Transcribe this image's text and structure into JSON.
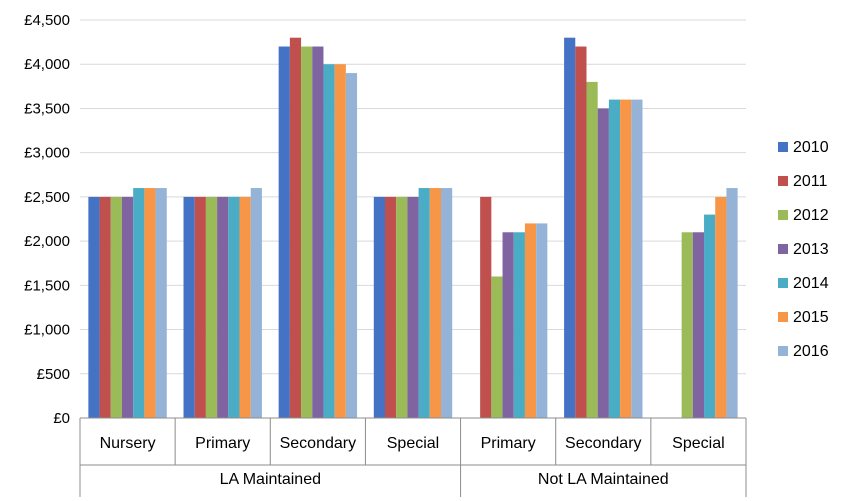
{
  "chart_data": {
    "type": "bar",
    "title": "",
    "xlabel": "",
    "ylabel": "",
    "ylim": [
      0,
      4500
    ],
    "yticks": [
      0,
      500,
      1000,
      1500,
      2000,
      2500,
      3000,
      3500,
      4000,
      4500
    ],
    "ytick_labels": [
      "£0",
      "£500",
      "£1,000",
      "£1,500",
      "£2,000",
      "£2,500",
      "£3,000",
      "£3,500",
      "£4,000",
      "£4,500"
    ],
    "grid": true,
    "legend_position": "right",
    "groups": [
      {
        "label": "LA Maintained",
        "categories": [
          "Nursery",
          "Primary",
          "Secondary",
          "Special"
        ]
      },
      {
        "label": "Not LA Maintained",
        "categories": [
          "Primary",
          "Secondary",
          "Special"
        ]
      }
    ],
    "series": [
      {
        "name": "2010",
        "color": "#4472C4",
        "values": [
          2500,
          2500,
          4200,
          2500,
          null,
          4300,
          null
        ]
      },
      {
        "name": "2011",
        "color": "#C0504D",
        "values": [
          2500,
          2500,
          4300,
          2500,
          2500,
          4200,
          null
        ]
      },
      {
        "name": "2012",
        "color": "#9BBB59",
        "values": [
          2500,
          2500,
          4200,
          2500,
          1600,
          3800,
          2100
        ]
      },
      {
        "name": "2013",
        "color": "#8064A2",
        "values": [
          2500,
          2500,
          4200,
          2500,
          2100,
          3500,
          2100
        ]
      },
      {
        "name": "2014",
        "color": "#4BACC6",
        "values": [
          2600,
          2500,
          4000,
          2600,
          2100,
          3600,
          2300
        ]
      },
      {
        "name": "2015",
        "color": "#F79646",
        "values": [
          2600,
          2500,
          4000,
          2600,
          2200,
          3600,
          2500
        ]
      },
      {
        "name": "2016",
        "color": "#95B3D7",
        "values": [
          2600,
          2600,
          3900,
          2600,
          2200,
          3600,
          2600
        ]
      }
    ]
  }
}
